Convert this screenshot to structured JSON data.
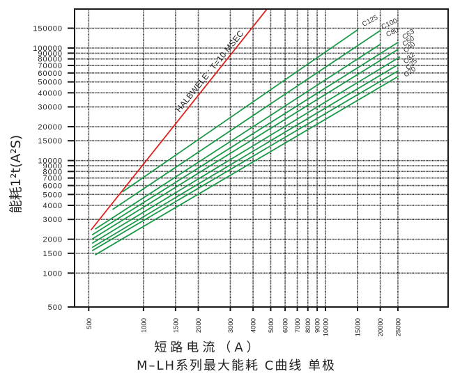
{
  "chart_data": {
    "type": "line",
    "title": "M–LH系列最大能耗 C曲线 单极",
    "xlabel": "短路电流（A）",
    "ylabel": "能耗1²t(A²S)",
    "xscale": "log",
    "yscale": "log",
    "xlim": [
      418,
      47200
    ],
    "ylim": [
      500,
      222000
    ],
    "grid": true,
    "legend": "inline labels at right end of each curve",
    "xticks": [
      500,
      1000,
      1500,
      2000,
      3000,
      4000,
      5000,
      6000,
      7000,
      8000,
      9000,
      10000,
      15000,
      20000,
      25000
    ],
    "yticks": [
      500,
      1000,
      1500,
      2000,
      3000,
      4000,
      5000,
      6000,
      7000,
      8000,
      9000,
      10000,
      15000,
      20000,
      30000,
      40000,
      50000,
      60000,
      70000,
      80000,
      90000,
      100000,
      150000
    ],
    "series": [
      {
        "name": "HALBWELE : T=10 MSEC",
        "kind": "reference",
        "color": "#e0201c",
        "x": [
          516,
          4770
        ],
        "y": [
          2430,
          222000
        ],
        "label_at": [
          1580,
          26600
        ],
        "label_rotate": -51
      },
      {
        "name": "C125",
        "color": "#1a9a48",
        "x": [
          770,
          15000
        ],
        "y": [
          5300,
          145000
        ],
        "label_at": [
          16200,
          155000
        ],
        "label_rotate": -28
      },
      {
        "name": "C100",
        "color": "#1a9a48",
        "x": [
          680,
          20000
        ],
        "y": [
          3700,
          143000
        ],
        "label_at": [
          20600,
          146800
        ],
        "label_rotate": -25
      },
      {
        "name": "C80",
        "color": "#1a9a48",
        "x": [
          545,
          20000
        ],
        "y": [
          2470,
          108000
        ],
        "label_at": [
          21900,
          125500
        ],
        "label_rotate": -25
      },
      {
        "name": "C63",
        "color": "#1a9a48",
        "x": [
          525,
          25000
        ],
        "y": [
          2200,
          112000
        ],
        "label_at": [
          27100,
          118600
        ],
        "label_rotate": -35
      },
      {
        "name": "C50",
        "color": "#1a9a48",
        "x": [
          525,
          25000
        ],
        "y": [
          2020,
          97000
        ],
        "label_at": [
          27100,
          102800
        ],
        "label_rotate": -35
      },
      {
        "name": "C40",
        "color": "#1a9a48",
        "x": [
          525,
          25500
        ],
        "y": [
          1850,
          83000
        ],
        "label_at": [
          27600,
          90400
        ],
        "label_rotate": -40
      },
      {
        "name": "C32",
        "color": "#1a9a48",
        "x": [
          525,
          25000
        ],
        "y": [
          1700,
          71000
        ],
        "label_at": [
          27700,
          72000
        ],
        "label_rotate": -45
      },
      {
        "name": "C25",
        "color": "#1a9a48",
        "x": [
          525,
          25000
        ],
        "y": [
          1590,
          62500
        ],
        "label_at": [
          28550,
          63400
        ],
        "label_rotate": -45
      },
      {
        "name": "C20",
        "color": "#1a9a48",
        "x": [
          545,
          25000
        ],
        "y": [
          1460,
          55700
        ],
        "label_at": [
          27600,
          55000
        ],
        "label_rotate": -35
      }
    ]
  }
}
